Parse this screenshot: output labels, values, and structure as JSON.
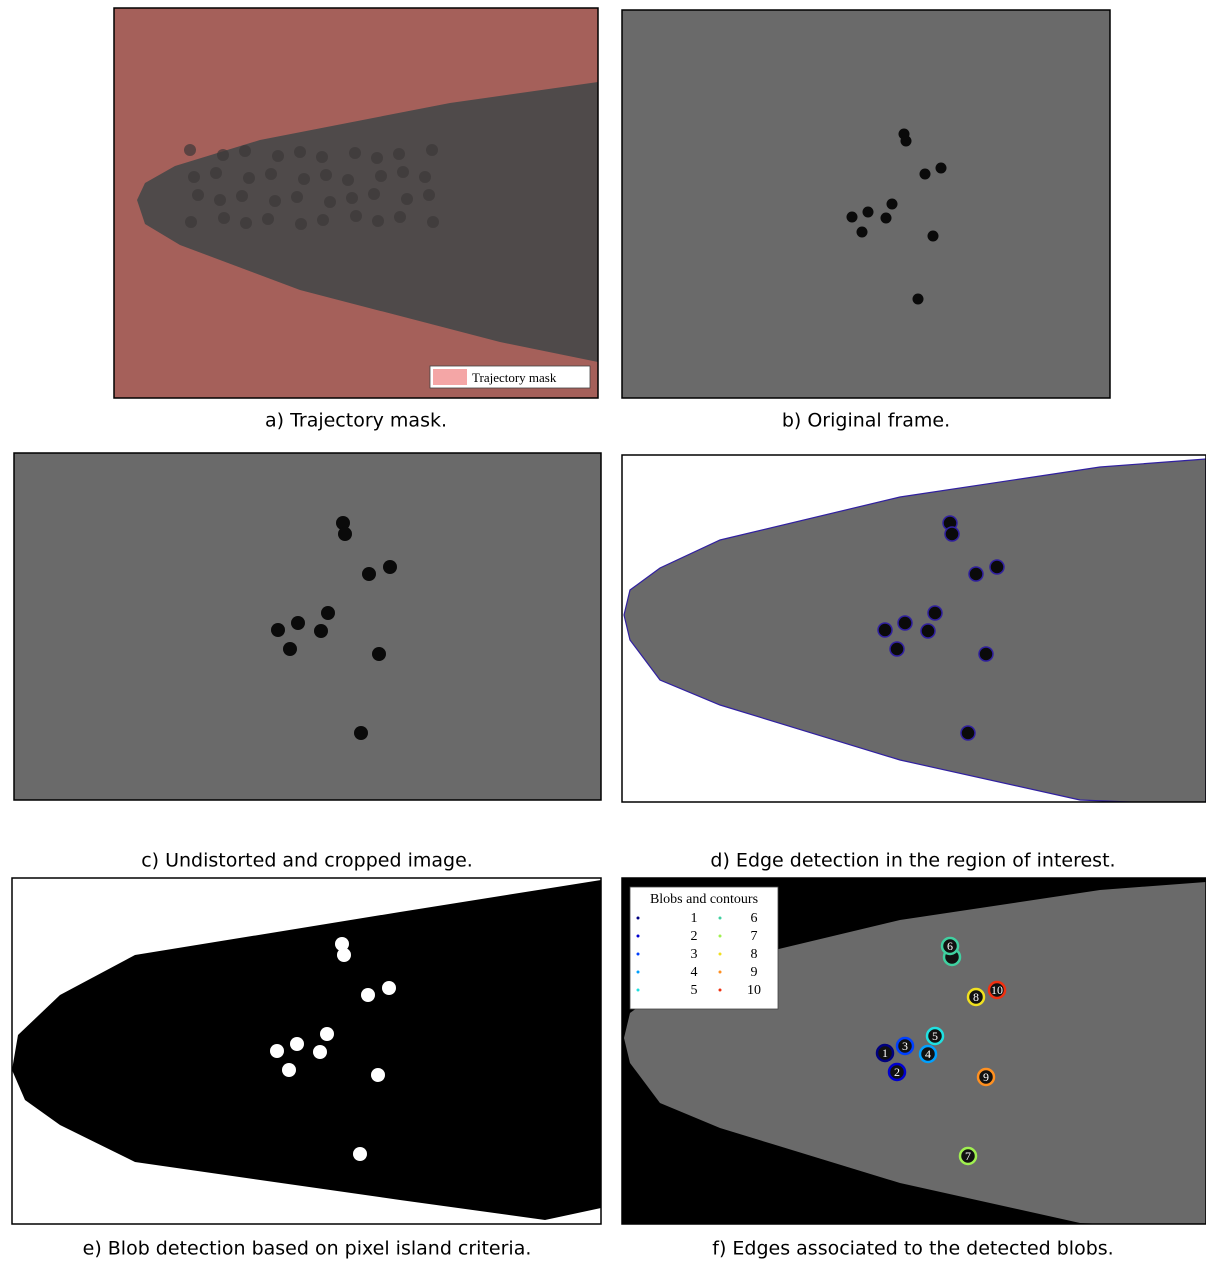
{
  "panels": [
    {
      "caption": "a) Trajectory mask.",
      "legend": {
        "label": "Trajectory mask"
      }
    },
    {
      "caption": "b) Original frame."
    },
    {
      "caption": "c) Undistorted and cropped image."
    },
    {
      "caption": "d) Edge detection in the region of interest."
    },
    {
      "caption": "e) Blob detection based on pixel island criteria."
    },
    {
      "caption": "f) Edges associated to the detected blobs.",
      "legend": {
        "title": "Blobs and contours",
        "entries": [
          {
            "label": "1",
            "color": "#00007f"
          },
          {
            "label": "2",
            "color": "#0000d0"
          },
          {
            "label": "3",
            "color": "#0040ff"
          },
          {
            "label": "4",
            "color": "#00a0ff"
          },
          {
            "label": "5",
            "color": "#20e0e0"
          },
          {
            "label": "6",
            "color": "#40d0a0"
          },
          {
            "label": "7",
            "color": "#a0f050"
          },
          {
            "label": "8",
            "color": "#f0e020"
          },
          {
            "label": "9",
            "color": "#ff9020"
          },
          {
            "label": "10",
            "color": "#f03010"
          }
        ]
      }
    }
  ]
}
